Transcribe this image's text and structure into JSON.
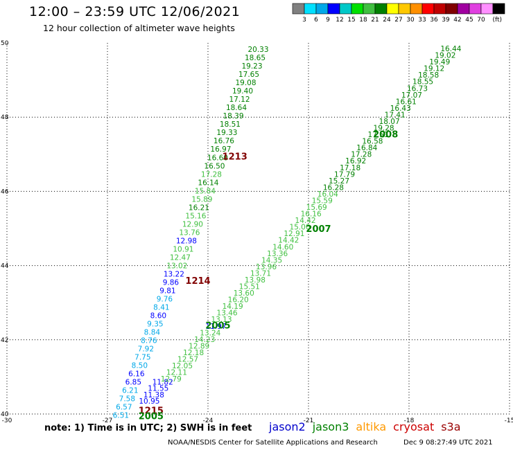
{
  "header": {
    "title": "12:00 – 23:59 UTC 12/06/2021",
    "subtitle": "12 hour collection of altimeter wave heights"
  },
  "legend": {
    "unit": "(ft)",
    "labels": [
      "3",
      "6",
      "9",
      "12",
      "15",
      "18",
      "21",
      "24",
      "27",
      "30",
      "33",
      "36",
      "39",
      "42",
      "45",
      "70"
    ],
    "colors": [
      "#808080",
      "#00e0ff",
      "#00a8e8",
      "#0000ff",
      "#00c8c8",
      "#00e000",
      "#40c040",
      "#008000",
      "#ffff00",
      "#ffc800",
      "#ff9000",
      "#ff0000",
      "#c00000",
      "#800000",
      "#a000a0",
      "#e040e0",
      "#ff90ff",
      "#000000"
    ]
  },
  "axes": {
    "x_ticks": [
      "-30",
      "-27",
      "-24",
      "-21",
      "-18",
      "-15"
    ],
    "y_ticks": [
      "40",
      "42",
      "44",
      "46",
      "48",
      "50"
    ]
  },
  "footer": {
    "note": "note:  1) Time is in UTC;  2) SWH is in feet",
    "satellites": [
      {
        "name": "jason2",
        "color": "#0000cc"
      },
      {
        "name": "jason3",
        "color": "#008000"
      },
      {
        "name": "altika",
        "color": "#ff9900"
      },
      {
        "name": "cryosat",
        "color": "#cc0000"
      },
      {
        "name": "s3a",
        "color": "#990000"
      }
    ],
    "center": "NOAA/NESDIS Center for Satellite Applications and Research",
    "timestamp": "Dec  9 08:27:49 UTC 2021"
  },
  "track_labels": [
    {
      "text": "1213",
      "lon": -23.2,
      "lat": 46.95,
      "color": "#800000"
    },
    {
      "text": "1214",
      "lon": -24.3,
      "lat": 43.6,
      "color": "#800000"
    },
    {
      "text": "1215",
      "lon": -25.7,
      "lat": 40.1,
      "color": "#800000"
    },
    {
      "text": "2005",
      "lon": -25.7,
      "lat": 39.95,
      "color": "#008000"
    },
    {
      "text": "2005",
      "lon": -23.7,
      "lat": 42.4,
      "color": "#008000"
    },
    {
      "text": "2007",
      "lon": -20.7,
      "lat": 45.0,
      "color": "#008000"
    },
    {
      "text": "2008",
      "lon": -18.7,
      "lat": 47.55,
      "color": "#008000"
    }
  ],
  "track_a": {
    "color_bands": [
      "#008000",
      "#008000",
      "#008000",
      "#008000",
      "#008000",
      "#008000",
      "#008000",
      "#008000",
      "#008000",
      "#008000",
      "#008000",
      "#008000",
      "#008000",
      "#008000",
      "#008000",
      "#40c040",
      "#008000",
      "#40c040",
      "#40c040",
      "#008000",
      "#40c040",
      "#40c040",
      "#40c040",
      "#0000ff",
      "#40c040",
      "#40c040",
      "#40c040",
      "#0000ff",
      "#0000ff",
      "#0000ff",
      "#00a8e8",
      "#00a8e8",
      "#0000ff",
      "#00a8e8",
      "#00a8e8",
      "#00a8e8",
      "#00a8e8",
      "#00a8e8",
      "#00a8e8",
      "#0000ff",
      "#0000ff",
      "#00a8e8",
      "#00a8e8",
      "#00a8e8",
      "#00a8e8",
      "#00a8e8"
    ],
    "values": [
      "20.33",
      "18.65",
      "19.23",
      "17.65",
      "19.08",
      "19.40",
      "17.12",
      "18.64",
      "18.39",
      "18.51",
      "19.33",
      "16.76",
      "16.97",
      "16.60",
      "16.50",
      "17.28",
      "16.14",
      "15.84",
      "15.89",
      "16.21",
      "15.16",
      "12.90",
      "13.76",
      "12.98",
      "10.91",
      "12.47",
      "13.02",
      "13.22",
      "9.86",
      "9.81",
      "9.76",
      "8.41",
      "8.60",
      "9.35",
      "8.84",
      "8.76",
      "7.92",
      "7.75",
      "8.50",
      "6.16",
      "6.85",
      "6.21",
      "7.58",
      "6.57",
      "6.51",
      "11.82",
      "11.55",
      "11.38",
      "10.95"
    ]
  },
  "track_b": {
    "values": [
      "16.44",
      "19.02",
      "19.49",
      "19.12",
      "18.58",
      "18.55",
      "16.73",
      "17.07",
      "16.61",
      "16.43",
      "17.41",
      "18.07",
      "19.28",
      "17.51",
      "16.58",
      "16.84",
      "17.28",
      "16.92",
      "17.18",
      "17.79",
      "15.27",
      "16.28",
      "16.04",
      "15.59",
      "15.69",
      "16.16",
      "14.42",
      "15.00",
      "12.91",
      "14.42",
      "14.60",
      "13.36",
      "14.35",
      "13.96",
      "13.71",
      "13.98",
      "15.51",
      "13.60",
      "16.20",
      "14.19",
      "13.46",
      "13.13",
      "11.97",
      "13.24",
      "14.23",
      "12.89",
      "12.18",
      "12.57",
      "12.05",
      "12.11",
      "12.79"
    ]
  }
}
